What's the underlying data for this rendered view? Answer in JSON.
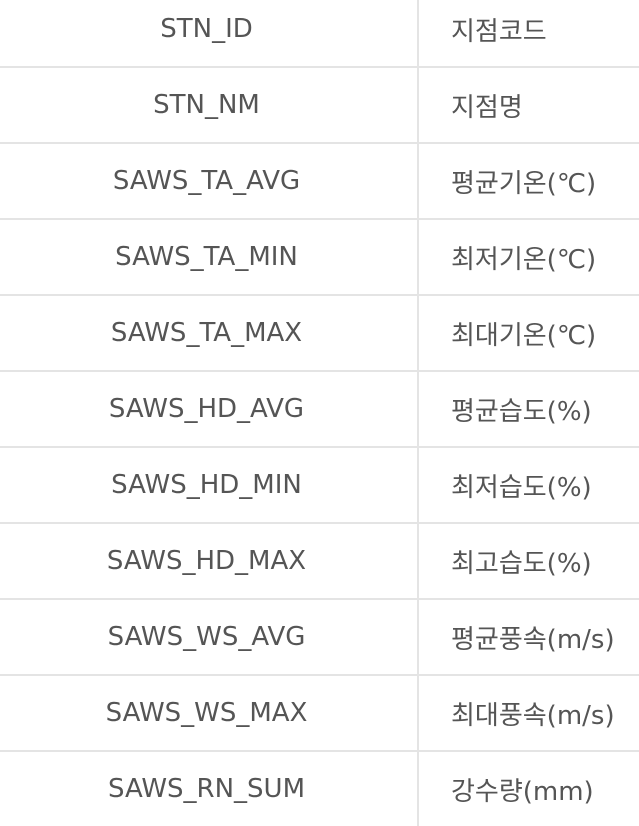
{
  "table": {
    "rows": [
      {
        "code": "STN_ID",
        "desc": "지점코드"
      },
      {
        "code": "STN_NM",
        "desc": "지점명"
      },
      {
        "code": "SAWS_TA_AVG",
        "desc": "평균기온(℃)"
      },
      {
        "code": "SAWS_TA_MIN",
        "desc": "최저기온(℃)"
      },
      {
        "code": "SAWS_TA_MAX",
        "desc": "최대기온(℃)"
      },
      {
        "code": "SAWS_HD_AVG",
        "desc": "평균습도(%)"
      },
      {
        "code": "SAWS_HD_MIN",
        "desc": "최저습도(%)"
      },
      {
        "code": "SAWS_HD_MAX",
        "desc": "최고습도(%)"
      },
      {
        "code": "SAWS_WS_AVG",
        "desc": "평균풍속(m/s)"
      },
      {
        "code": "SAWS_WS_MAX",
        "desc": "최대풍속(m/s)"
      },
      {
        "code": "SAWS_RN_SUM",
        "desc": "강수량(mm)"
      }
    ]
  },
  "colors": {
    "text": "#555555",
    "border": "#e4e4e4",
    "background": "#ffffff"
  }
}
